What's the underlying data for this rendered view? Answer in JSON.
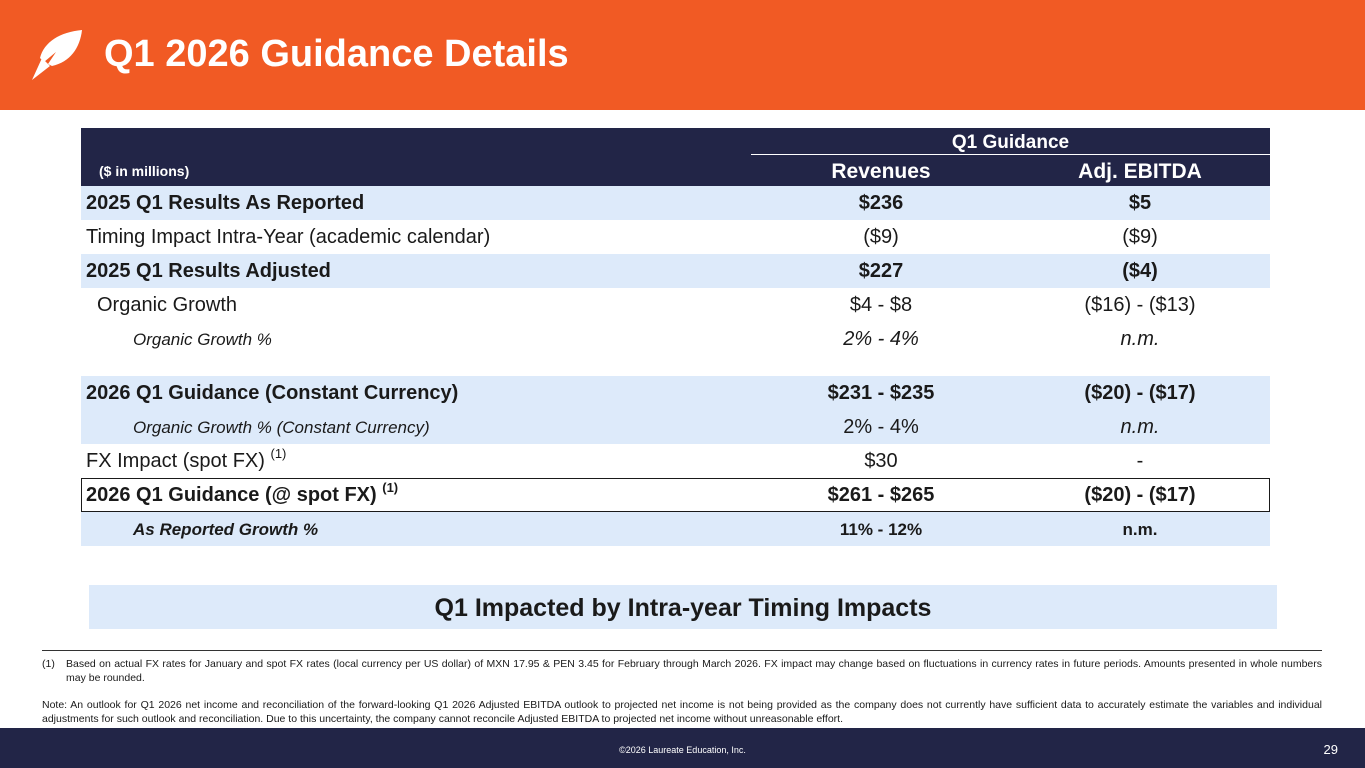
{
  "header": {
    "title": "Q1 2026 Guidance Details",
    "bg_color": "#f15a24"
  },
  "table": {
    "group_header": "Q1 Guidance",
    "units": "($ in millions)",
    "columns": [
      "Revenues",
      "Adj. EBITDA"
    ],
    "rows": [
      {
        "label": "2025 Q1 Results As Reported",
        "revenues": "$236",
        "ebitda": "$5"
      },
      {
        "label": "Timing Impact Intra-Year (academic calendar)",
        "revenues": "($9)",
        "ebitda": "($9)"
      },
      {
        "label": "2025 Q1 Results Adjusted",
        "revenues": "$227",
        "ebitda": "($4)"
      },
      {
        "label": "Organic Growth",
        "revenues": "$4 - $8",
        "ebitda": "($16) - ($13)"
      },
      {
        "label": "Organic Growth %",
        "revenues": "2% - 4%",
        "ebitda": "n.m."
      },
      {
        "label": "2026 Q1 Guidance (Constant Currency)",
        "revenues": "$231 - $235",
        "ebitda": "($20) - ($17)"
      },
      {
        "label": "Organic Growth % (Constant Currency)",
        "revenues": "2% - 4%",
        "ebitda": "n.m."
      },
      {
        "label": "FX Impact (spot FX)",
        "sup": "(1)",
        "revenues": "$30",
        "ebitda": "-"
      },
      {
        "label": "2026 Q1 Guidance (@ spot FX)",
        "sup": "(1)",
        "revenues": "$261 - $265",
        "ebitda": "($20) - ($17)"
      },
      {
        "label": "As Reported Growth %",
        "revenues": "11% - 12%",
        "ebitda": "n.m."
      }
    ]
  },
  "banner": "Q1 Impacted by Intra-year Timing Impacts",
  "footnotes": {
    "fn1_num": "(1)",
    "fn1_text": "Based on actual FX rates for January and spot FX rates (local currency per US dollar) of MXN 17.95 & PEN 3.45 for February through March 2026. FX impact may change based on fluctuations in currency rates in future periods.  Amounts presented in whole numbers may be rounded.",
    "note": "Note: An outlook for Q1 2026 net income and reconciliation of the forward-looking Q1 2026 Adjusted EBITDA outlook to projected net income is not being provided as the company does not currently have sufficient data to accurately estimate the variables and individual adjustments for such outlook and reconciliation.  Due to this uncertainty, the company cannot reconcile Adjusted EBITDA to projected net income without unreasonable effort."
  },
  "footer": {
    "copyright": "©2026 Laureate Education, Inc.",
    "page_number": "29"
  }
}
